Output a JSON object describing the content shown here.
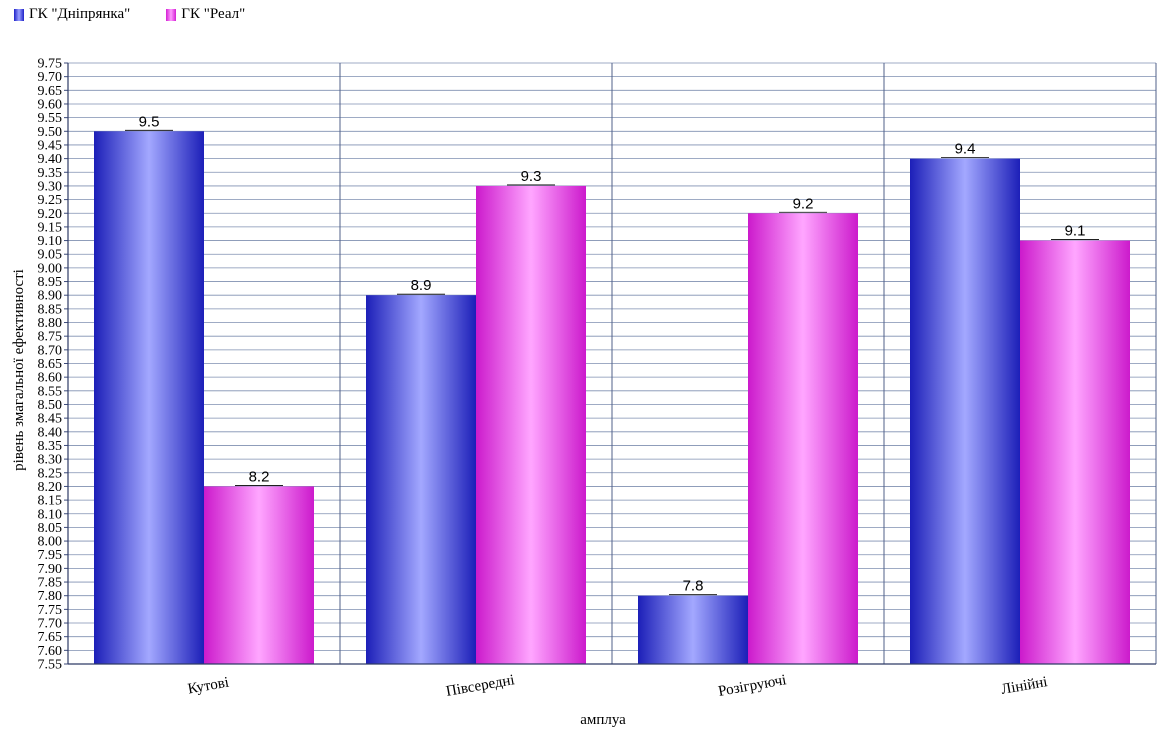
{
  "chart_data": {
    "type": "bar",
    "title": "",
    "xlabel": "амплуа",
    "ylabel": "рівень змагальної ефективності",
    "categories": [
      "Кутові",
      "Півсередні",
      "Розігруючі",
      "Лінійні"
    ],
    "series": [
      {
        "name": "ГК \"Дніпрянка\"",
        "values": [
          9.5,
          8.9,
          7.8,
          9.4
        ],
        "color": "#2a2ee0"
      },
      {
        "name": "ГК \"Реал\"",
        "values": [
          8.2,
          9.3,
          9.2,
          9.1
        ],
        "color": "#e62ee6"
      }
    ],
    "ylim": [
      7.55,
      9.75
    ],
    "ytick_step": 0.05,
    "grid": true,
    "legend_position": "top-left",
    "data_labels": true
  }
}
